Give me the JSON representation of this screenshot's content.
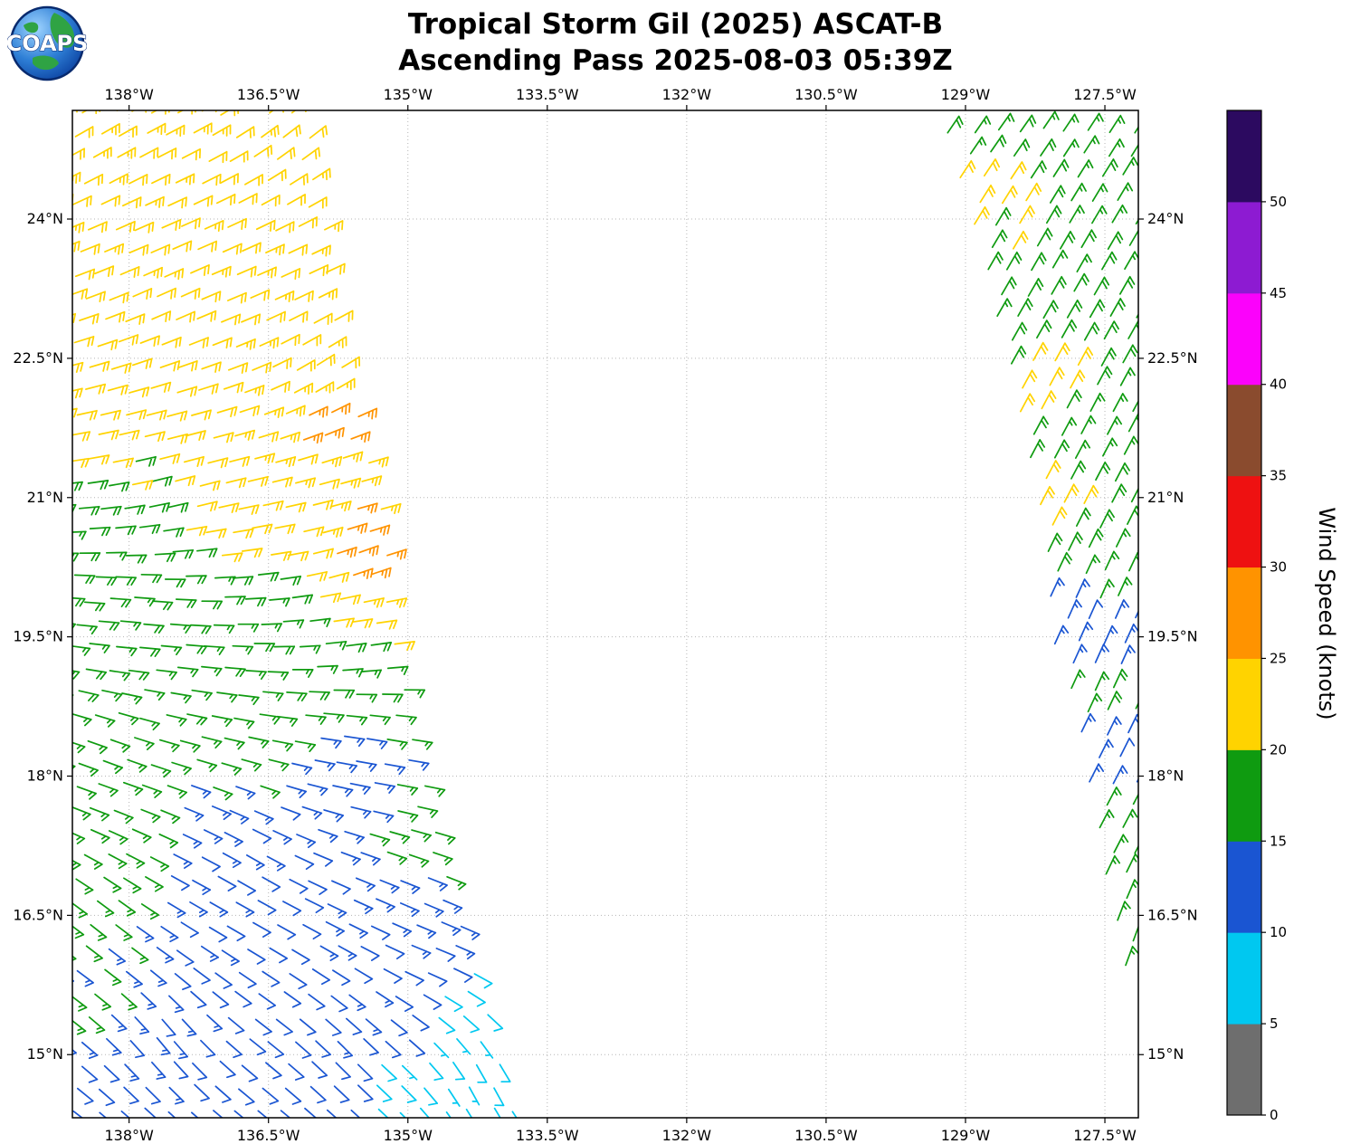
{
  "logo": {
    "text": "COAPS"
  },
  "header": {
    "title_line1": "Tropical Storm Gil (2025) ASCAT-B",
    "title_line2": "Ascending Pass 2025-08-03 05:39Z"
  },
  "chart_data": {
    "type": "wind_barb_map",
    "title": "Tropical Storm Gil (2025) ASCAT-B",
    "subtitle": "Ascending Pass 2025-08-03 05:39Z",
    "x_axis": {
      "lim": [
        -138.61,
        -127.14
      ],
      "ticks_deg": [
        -138,
        -136.5,
        -135,
        -133.5,
        -132,
        -130.5,
        -129,
        -127.5
      ],
      "labels": [
        "138°W",
        "136.5°W",
        "135°W",
        "133.5°W",
        "132°W",
        "130.5°W",
        "129°W",
        "127.5°W"
      ]
    },
    "y_axis": {
      "lim": [
        14.32,
        25.17
      ],
      "ticks_deg": [
        15,
        16.5,
        18,
        19.5,
        21,
        22.5,
        24
      ],
      "labels": [
        "15°N",
        "16.5°N",
        "18°N",
        "19.5°N",
        "21°N",
        "22.5°N",
        "24°N"
      ]
    },
    "grid": {
      "style": "dotted",
      "color": "#b5b5b5"
    },
    "spacing_deg": 0.25,
    "colorbar": {
      "label": "Wind Speed (knots)",
      "tick_values": [
        0,
        5,
        10,
        15,
        20,
        25,
        30,
        35,
        40,
        45,
        50
      ],
      "bands": [
        {
          "min": 0,
          "max": 5,
          "color": "#6e6e6e"
        },
        {
          "min": 5,
          "max": 10,
          "color": "#00c8f0"
        },
        {
          "min": 10,
          "max": 15,
          "color": "#1a55d2"
        },
        {
          "min": 15,
          "max": 20,
          "color": "#0f9b10"
        },
        {
          "min": 20,
          "max": 25,
          "color": "#ffd300"
        },
        {
          "min": 25,
          "max": 30,
          "color": "#ff9300"
        },
        {
          "min": 30,
          "max": 35,
          "color": "#ee1111"
        },
        {
          "min": 35,
          "max": 40,
          "color": "#8a4b2e"
        },
        {
          "min": 40,
          "max": 45,
          "color": "#fb02fb"
        },
        {
          "min": 45,
          "max": 50,
          "color": "#8d1bd2"
        },
        {
          "min": 50,
          "max": 55,
          "color": "#2c0a60"
        }
      ]
    },
    "swaths": [
      {
        "name": "left-swath",
        "fill": "west",
        "lat_range": [
          14.4,
          25.15
        ],
        "edge_polyline": [
          [
            25.17,
            -136.12
          ],
          [
            24.0,
            -135.92
          ],
          [
            22.5,
            -135.72
          ],
          [
            21.0,
            -135.3
          ],
          [
            19.5,
            -135.18
          ],
          [
            18.0,
            -134.86
          ],
          [
            16.5,
            -134.43
          ],
          [
            15.0,
            -134.07
          ],
          [
            14.35,
            -133.82
          ]
        ],
        "speed_points": [
          [
            25.0,
            -138.4,
            22
          ],
          [
            25.0,
            -136.3,
            22
          ],
          [
            23.6,
            -137.6,
            22
          ],
          [
            22.5,
            -138.4,
            21.5
          ],
          [
            22.5,
            -136.2,
            22
          ],
          [
            21.8,
            -137.4,
            21.5
          ],
          [
            21.6,
            -135.85,
            26
          ],
          [
            21.4,
            -138.5,
            21
          ],
          [
            21.3,
            -136.1,
            22
          ],
          [
            20.9,
            -138.5,
            17.5
          ],
          [
            20.6,
            -136.9,
            21
          ],
          [
            20.35,
            -135.5,
            27
          ],
          [
            20.1,
            -136.0,
            21
          ],
          [
            19.8,
            -135.35,
            22.5
          ],
          [
            20.0,
            -137.3,
            17
          ],
          [
            19.6,
            -136.3,
            17
          ],
          [
            19.2,
            -137.9,
            17
          ],
          [
            19.1,
            -135.45,
            17.5
          ],
          [
            18.4,
            -138.5,
            16.5
          ],
          [
            18.3,
            -136.7,
            16
          ],
          [
            18.9,
            -135.7,
            17
          ],
          [
            17.6,
            -137.9,
            16
          ],
          [
            17.0,
            -137.2,
            12.5
          ],
          [
            17.8,
            -136.1,
            13
          ],
          [
            18.2,
            -135.7,
            13.5
          ],
          [
            17.5,
            -134.95,
            16
          ],
          [
            16.5,
            -138.55,
            16
          ],
          [
            16.7,
            -136.6,
            12
          ],
          [
            16.6,
            -134.6,
            14
          ],
          [
            15.6,
            -138.55,
            15
          ],
          [
            15.6,
            -136.8,
            12
          ],
          [
            15.8,
            -135.3,
            12.5
          ],
          [
            15.4,
            -134.35,
            8
          ],
          [
            14.7,
            -138.2,
            12.5
          ],
          [
            14.6,
            -136.3,
            11.5
          ],
          [
            15.0,
            -133.95,
            7.5
          ],
          [
            14.5,
            -134.6,
            7
          ]
        ],
        "direction_points": [
          [
            25.0,
            -138.4,
            60
          ],
          [
            25.0,
            -136.2,
            52
          ],
          [
            23.2,
            -137.6,
            66
          ],
          [
            22.4,
            -135.9,
            58
          ],
          [
            21.2,
            -137.4,
            75
          ],
          [
            20.3,
            -135.5,
            70
          ],
          [
            19.6,
            -137.9,
            95
          ],
          [
            19.5,
            -135.4,
            82
          ],
          [
            18.2,
            -138.3,
            110
          ],
          [
            18.2,
            -135.3,
            100
          ],
          [
            17.0,
            -136.8,
            120
          ],
          [
            16.4,
            -138.4,
            128
          ],
          [
            16.2,
            -134.8,
            112
          ],
          [
            15.2,
            -137.7,
            140
          ],
          [
            15.0,
            -135.7,
            135
          ],
          [
            14.7,
            -134.2,
            152
          ]
        ]
      },
      {
        "name": "right-swath",
        "fill": "east",
        "lat_range": [
          15.95,
          25.15
        ],
        "edge_polyline": [
          [
            25.17,
            -129.22
          ],
          [
            24.0,
            -128.92
          ],
          [
            22.5,
            -128.55
          ],
          [
            21.0,
            -128.2
          ],
          [
            19.5,
            -128.02
          ],
          [
            18.0,
            -127.64
          ],
          [
            17.0,
            -127.5
          ],
          [
            16.4,
            -127.34
          ],
          [
            15.9,
            -127.28
          ]
        ],
        "speed_points": [
          [
            25.1,
            -129.1,
            17
          ],
          [
            25.1,
            -127.3,
            17
          ],
          [
            24.1,
            -128.75,
            21
          ],
          [
            23.9,
            -127.6,
            17.5
          ],
          [
            23.2,
            -128.4,
            18
          ],
          [
            22.15,
            -128.05,
            21
          ],
          [
            22.1,
            -127.25,
            18
          ],
          [
            21.6,
            -127.8,
            17
          ],
          [
            20.85,
            -127.95,
            21
          ],
          [
            20.4,
            -127.45,
            17.5
          ],
          [
            19.45,
            -127.65,
            13
          ],
          [
            18.9,
            -127.5,
            17
          ],
          [
            18.05,
            -127.4,
            13
          ],
          [
            17.4,
            -127.45,
            16.5
          ],
          [
            16.4,
            -127.25,
            16
          ]
        ],
        "direction_points": [
          [
            25.0,
            -128.6,
            35
          ],
          [
            23.5,
            -128.2,
            30
          ],
          [
            21.5,
            -127.9,
            28
          ],
          [
            19.5,
            -127.6,
            24
          ],
          [
            17.5,
            -127.35,
            28
          ],
          [
            16.1,
            -127.25,
            20
          ]
        ]
      }
    ]
  }
}
